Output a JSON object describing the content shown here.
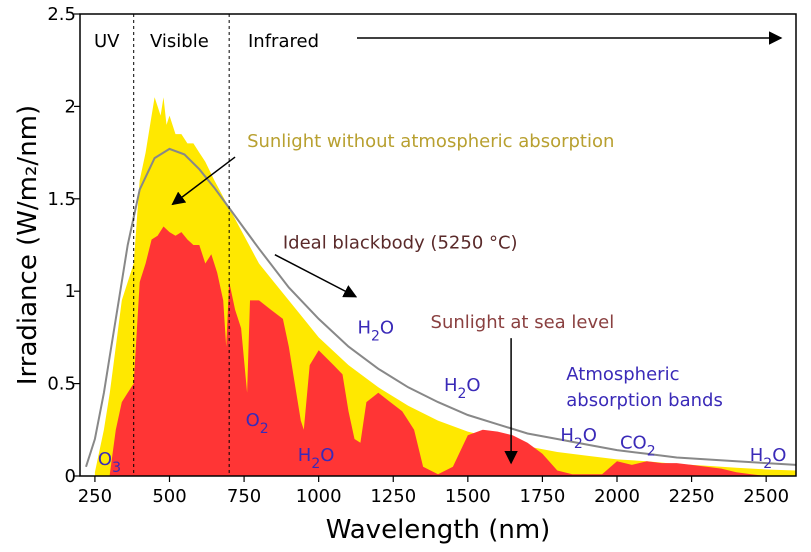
{
  "chart_data": {
    "type": "area",
    "title": "",
    "xlabel": "Wavelength (nm)",
    "ylabel": "Irradiance (W/m₂/nm)",
    "xlim": [
      200,
      2600
    ],
    "ylim": [
      0,
      2.5
    ],
    "grid": false,
    "x_ticks": [
      {
        "value": 250,
        "label": "250"
      },
      {
        "value": 500,
        "label": "500"
      },
      {
        "value": 750,
        "label": "750"
      },
      {
        "value": 1000,
        "label": "1000"
      },
      {
        "value": 1250,
        "label": "1250"
      },
      {
        "value": 1500,
        "label": "1500"
      },
      {
        "value": 1750,
        "label": "1750"
      },
      {
        "value": 2000,
        "label": "2000"
      },
      {
        "value": 2250,
        "label": "2250"
      },
      {
        "value": 2500,
        "label": "2500"
      }
    ],
    "y_ticks": [
      {
        "value": 0,
        "label": "0"
      },
      {
        "value": 0.5,
        "label": "0.5"
      },
      {
        "value": 1,
        "label": "1"
      },
      {
        "value": 1.5,
        "label": "1.5"
      },
      {
        "value": 2,
        "label": "2"
      },
      {
        "value": 2.5,
        "label": "2.5"
      }
    ],
    "regions": [
      {
        "label": "UV",
        "from": 200,
        "to": 380
      },
      {
        "label": "Visible",
        "from": 380,
        "to": 700
      },
      {
        "label": "Infrared",
        "from": 700,
        "to": 2600
      }
    ],
    "series": [
      {
        "name": "Sunlight without atmospheric absorption",
        "color": "#ffe800",
        "points": [
          [
            250,
            0.02
          ],
          [
            280,
            0.25
          ],
          [
            300,
            0.45
          ],
          [
            320,
            0.7
          ],
          [
            340,
            0.95
          ],
          [
            360,
            1.05
          ],
          [
            380,
            1.15
          ],
          [
            400,
            1.6
          ],
          [
            420,
            1.75
          ],
          [
            440,
            1.95
          ],
          [
            450,
            2.05
          ],
          [
            460,
            2.0
          ],
          [
            470,
            1.95
          ],
          [
            480,
            2.05
          ],
          [
            490,
            1.9
          ],
          [
            500,
            1.95
          ],
          [
            520,
            1.85
          ],
          [
            540,
            1.85
          ],
          [
            560,
            1.8
          ],
          [
            580,
            1.8
          ],
          [
            600,
            1.75
          ],
          [
            620,
            1.7
          ],
          [
            650,
            1.6
          ],
          [
            700,
            1.45
          ],
          [
            750,
            1.3
          ],
          [
            800,
            1.15
          ],
          [
            850,
            1.05
          ],
          [
            900,
            0.95
          ],
          [
            950,
            0.85
          ],
          [
            1000,
            0.75
          ],
          [
            1100,
            0.6
          ],
          [
            1200,
            0.48
          ],
          [
            1300,
            0.38
          ],
          [
            1400,
            0.3
          ],
          [
            1500,
            0.24
          ],
          [
            1600,
            0.2
          ],
          [
            1700,
            0.16
          ],
          [
            1800,
            0.13
          ],
          [
            1900,
            0.11
          ],
          [
            2000,
            0.09
          ],
          [
            2100,
            0.08
          ],
          [
            2200,
            0.065
          ],
          [
            2300,
            0.055
          ],
          [
            2400,
            0.045
          ],
          [
            2500,
            0.035
          ],
          [
            2600,
            0.03
          ]
        ]
      },
      {
        "name": "Ideal blackbody (5250 °C)",
        "color": "#888888",
        "points": [
          [
            220,
            0.05
          ],
          [
            250,
            0.2
          ],
          [
            280,
            0.45
          ],
          [
            300,
            0.65
          ],
          [
            330,
            0.95
          ],
          [
            360,
            1.25
          ],
          [
            400,
            1.55
          ],
          [
            450,
            1.72
          ],
          [
            500,
            1.77
          ],
          [
            550,
            1.74
          ],
          [
            600,
            1.66
          ],
          [
            650,
            1.56
          ],
          [
            700,
            1.45
          ],
          [
            750,
            1.34
          ],
          [
            800,
            1.23
          ],
          [
            900,
            1.02
          ],
          [
            1000,
            0.85
          ],
          [
            1100,
            0.7
          ],
          [
            1200,
            0.58
          ],
          [
            1300,
            0.48
          ],
          [
            1400,
            0.4
          ],
          [
            1500,
            0.33
          ],
          [
            1600,
            0.28
          ],
          [
            1700,
            0.23
          ],
          [
            1800,
            0.2
          ],
          [
            1900,
            0.17
          ],
          [
            2000,
            0.14
          ],
          [
            2100,
            0.12
          ],
          [
            2200,
            0.1
          ],
          [
            2300,
            0.09
          ],
          [
            2400,
            0.08
          ],
          [
            2500,
            0.07
          ],
          [
            2600,
            0.06
          ]
        ]
      },
      {
        "name": "Sunlight at sea level",
        "color": "#ff3535",
        "points": [
          [
            300,
            0.01
          ],
          [
            320,
            0.25
          ],
          [
            340,
            0.4
          ],
          [
            360,
            0.45
          ],
          [
            380,
            0.5
          ],
          [
            400,
            1.05
          ],
          [
            420,
            1.15
          ],
          [
            440,
            1.28
          ],
          [
            460,
            1.3
          ],
          [
            480,
            1.35
          ],
          [
            500,
            1.32
          ],
          [
            520,
            1.3
          ],
          [
            540,
            1.32
          ],
          [
            560,
            1.28
          ],
          [
            580,
            1.25
          ],
          [
            600,
            1.25
          ],
          [
            620,
            1.15
          ],
          [
            640,
            1.2
          ],
          [
            660,
            1.1
          ],
          [
            680,
            0.95
          ],
          [
            690,
            0.7
          ],
          [
            700,
            1.05
          ],
          [
            720,
            0.9
          ],
          [
            740,
            0.8
          ],
          [
            760,
            0.45
          ],
          [
            770,
            0.95
          ],
          [
            800,
            0.95
          ],
          [
            840,
            0.9
          ],
          [
            880,
            0.85
          ],
          [
            900,
            0.7
          ],
          [
            920,
            0.5
          ],
          [
            940,
            0.3
          ],
          [
            950,
            0.25
          ],
          [
            970,
            0.6
          ],
          [
            1000,
            0.68
          ],
          [
            1050,
            0.6
          ],
          [
            1080,
            0.55
          ],
          [
            1100,
            0.35
          ],
          [
            1120,
            0.2
          ],
          [
            1140,
            0.18
          ],
          [
            1160,
            0.4
          ],
          [
            1200,
            0.45
          ],
          [
            1240,
            0.4
          ],
          [
            1280,
            0.35
          ],
          [
            1320,
            0.25
          ],
          [
            1350,
            0.05
          ],
          [
            1400,
            0.01
          ],
          [
            1450,
            0.05
          ],
          [
            1500,
            0.22
          ],
          [
            1550,
            0.25
          ],
          [
            1600,
            0.24
          ],
          [
            1650,
            0.22
          ],
          [
            1700,
            0.18
          ],
          [
            1750,
            0.12
          ],
          [
            1800,
            0.03
          ],
          [
            1850,
            0.01
          ],
          [
            1900,
            0.01
          ],
          [
            1950,
            0.01
          ],
          [
            2000,
            0.08
          ],
          [
            2050,
            0.06
          ],
          [
            2100,
            0.08
          ],
          [
            2150,
            0.07
          ],
          [
            2200,
            0.07
          ],
          [
            2250,
            0.06
          ],
          [
            2300,
            0.05
          ],
          [
            2350,
            0.04
          ],
          [
            2400,
            0.02
          ],
          [
            2450,
            0.01
          ],
          [
            2500,
            0.0
          ]
        ]
      }
    ],
    "region_arrow_end": 2550,
    "annotations": [
      {
        "text": "Sunlight without atmospheric absorption",
        "x": 760,
        "y": 1.78,
        "color": "#b8a030",
        "arrow_to": [
          510,
          1.47
        ]
      },
      {
        "text": "Ideal blackbody (5250 °C)",
        "x": 880,
        "y": 1.23,
        "color": "#5a2a2a",
        "arrow_to": [
          1125,
          0.97
        ]
      },
      {
        "text": "Sunlight at sea level",
        "x": 1375,
        "y": 0.8,
        "color": "#8a4040",
        "arrow_to": [
          1645,
          0.07
        ]
      },
      {
        "text": "Atmospheric",
        "x": 1830,
        "y": 0.52,
        "color": "#3a2ab8"
      },
      {
        "text": "absorption bands",
        "x": 1830,
        "y": 0.38,
        "color": "#3a2ab8"
      }
    ],
    "absorption_bands": [
      {
        "base": "O",
        "sub": "3",
        "x": 260,
        "y": 0.06
      },
      {
        "base": "O",
        "sub": "2",
        "x": 755,
        "y": 0.27
      },
      {
        "base": "H",
        "sub": "2",
        "tail": "O",
        "x": 930,
        "y": 0.08
      },
      {
        "base": "H",
        "sub": "2",
        "tail": "O",
        "x": 1130,
        "y": 0.77
      },
      {
        "base": "H",
        "sub": "2",
        "tail": "O",
        "x": 1420,
        "y": 0.46
      },
      {
        "base": "H",
        "sub": "2",
        "tail": "O",
        "x": 1810,
        "y": 0.19
      },
      {
        "base": "CO",
        "sub": "2",
        "x": 2010,
        "y": 0.15
      },
      {
        "base": "H",
        "sub": "2",
        "tail": "O",
        "x": 2445,
        "y": 0.08
      }
    ]
  }
}
